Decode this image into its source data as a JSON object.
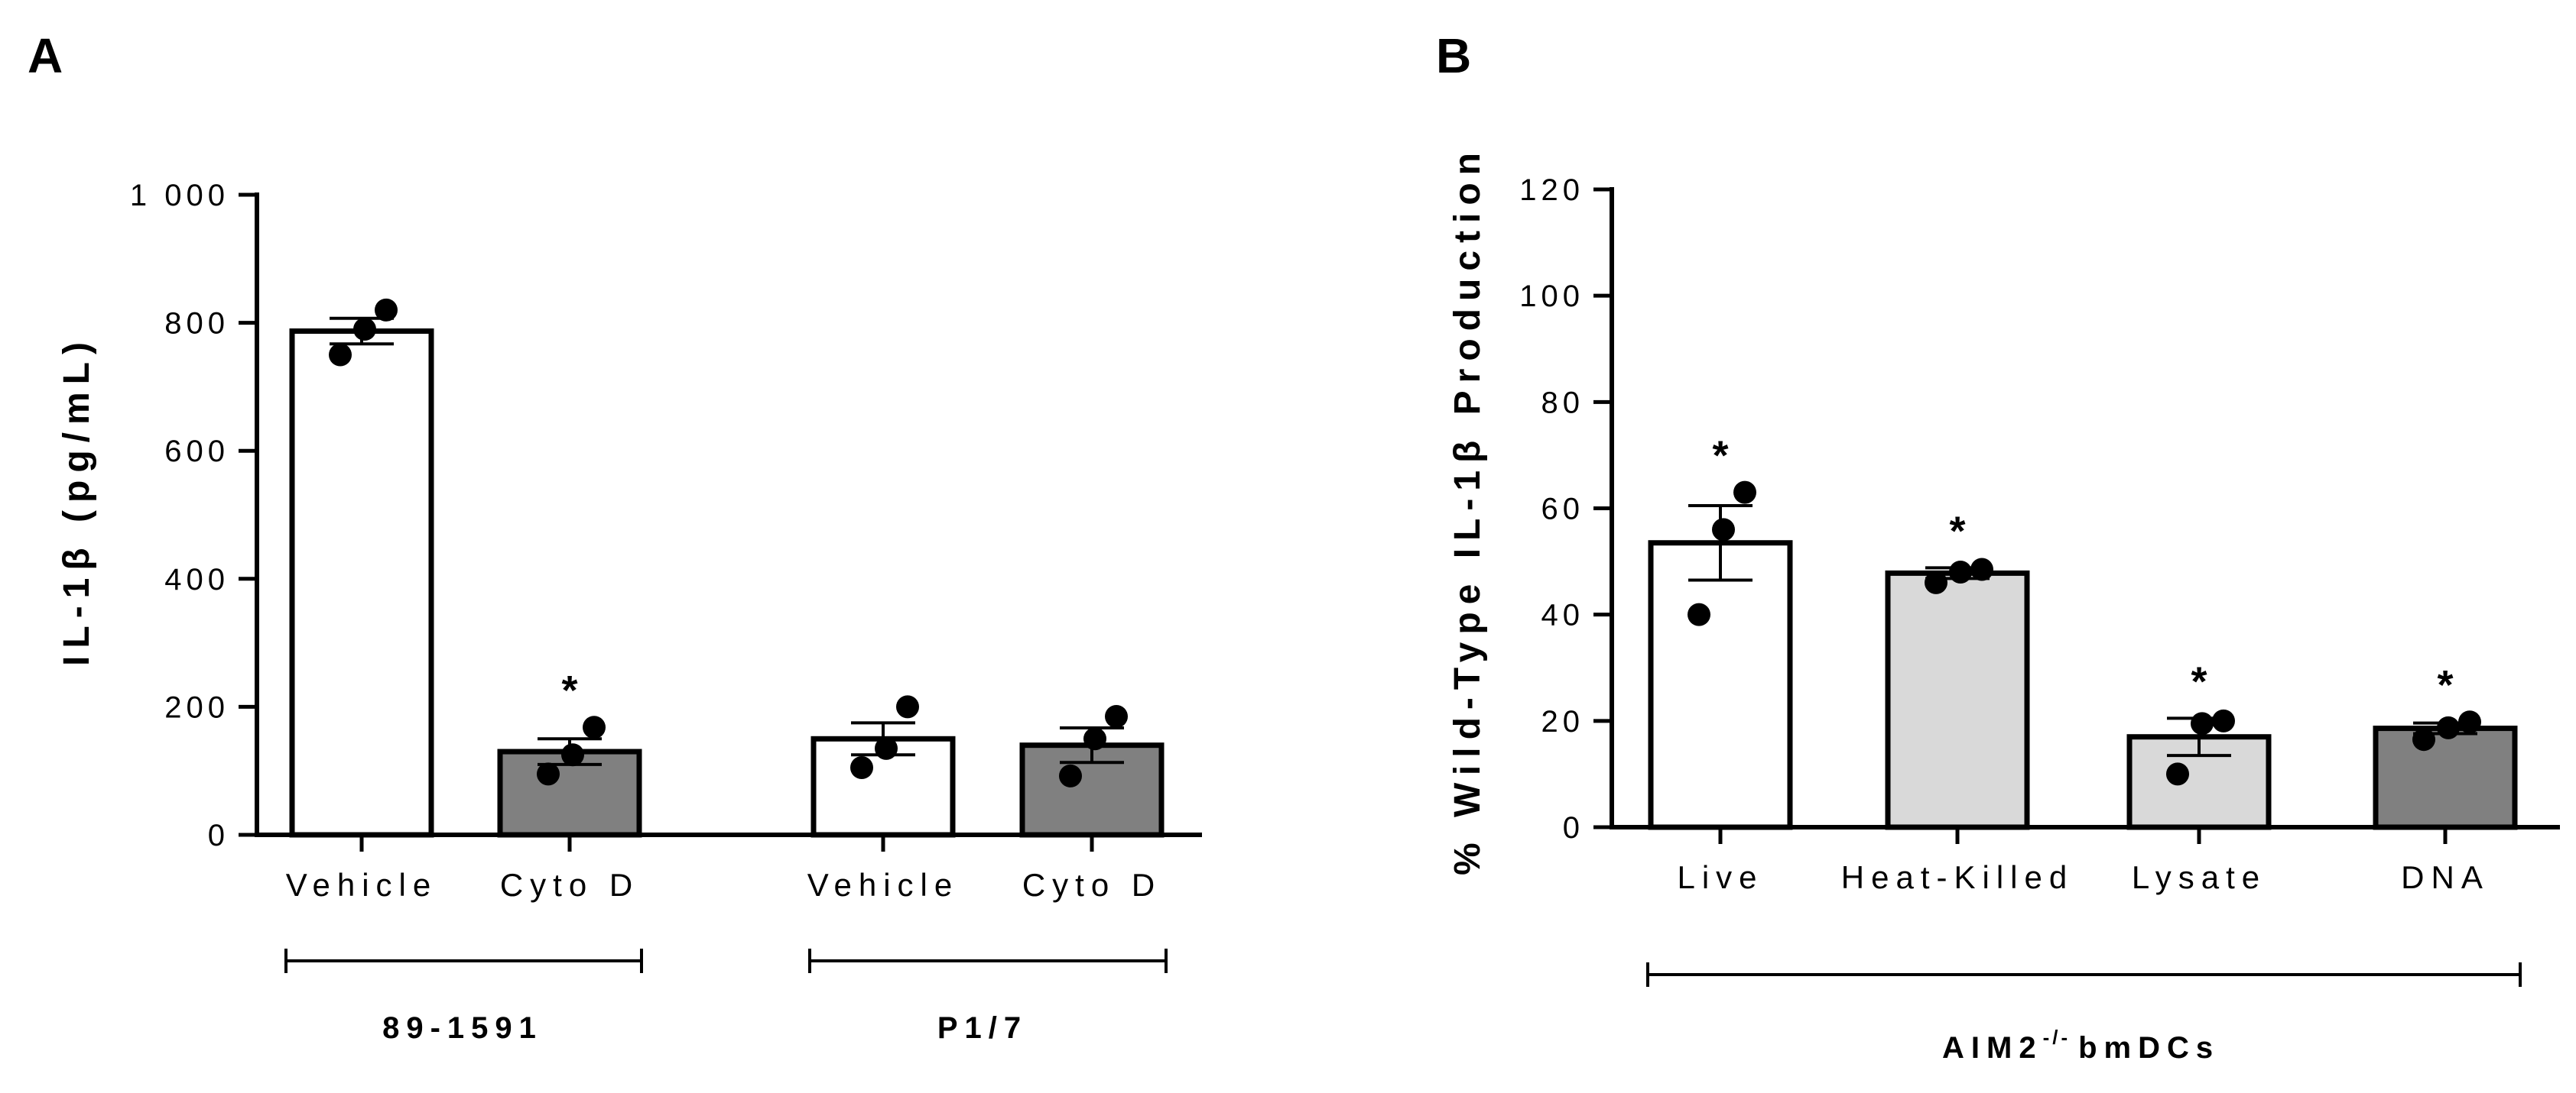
{
  "colors": {
    "white": "#ffffff",
    "light_gray": "#d9d9d9",
    "dark_gray": "#808080",
    "black": "#000000"
  },
  "chart_data": [
    {
      "panel": "A",
      "type": "bar",
      "ylabel": "IL-1β (pg/mL)",
      "ylim": [
        0,
        1000
      ],
      "yticks": [
        0,
        200,
        400,
        600,
        800,
        1000
      ],
      "ytick_labels": [
        "0",
        "200",
        "400",
        "600",
        "800",
        "1 000"
      ],
      "bars": [
        {
          "label": "Vehicle",
          "group": 0,
          "value": 787,
          "sem": 20,
          "fill": "white",
          "points": [
            750,
            790,
            820
          ],
          "star": ""
        },
        {
          "label": "Cyto D",
          "group": 0,
          "value": 130,
          "sem": 20,
          "fill": "dark_gray",
          "points": [
            95,
            125,
            168
          ],
          "star": "*"
        },
        {
          "label": "Vehicle",
          "group": 1,
          "value": 150,
          "sem": 25,
          "fill": "white",
          "points": [
            105,
            135,
            200
          ],
          "star": ""
        },
        {
          "label": "Cyto D",
          "group": 1,
          "value": 140,
          "sem": 27,
          "fill": "dark_gray",
          "points": [
            92,
            150,
            185
          ],
          "star": ""
        }
      ],
      "groups": [
        "89-1591",
        "P1/7"
      ]
    },
    {
      "panel": "B",
      "type": "bar",
      "ylabel": "% Wild-Type IL-1β Production",
      "ylim": [
        0,
        120
      ],
      "yticks": [
        0,
        20,
        40,
        60,
        80,
        100,
        120
      ],
      "ytick_labels": [
        "0",
        "20",
        "40",
        "60",
        "80",
        "100",
        "120"
      ],
      "bars": [
        {
          "label": "Live",
          "group": 0,
          "value": 53.5,
          "sem": 7,
          "fill": "white",
          "points": [
            40,
            56,
            63
          ],
          "star": "*"
        },
        {
          "label": "Heat-Killed",
          "group": 0,
          "value": 47.8,
          "sem": 1,
          "fill": "light_gray",
          "points": [
            46,
            48,
            48.5
          ],
          "star": "*"
        },
        {
          "label": "Lysate",
          "group": 0,
          "value": 17,
          "sem": 3.5,
          "fill": "light_gray",
          "points": [
            10,
            19.5,
            20
          ],
          "star": "*"
        },
        {
          "label": "DNA",
          "group": 0,
          "value": 18.6,
          "sem": 1,
          "fill": "dark_gray",
          "points": [
            16.5,
            18.7,
            19.8
          ],
          "star": "*"
        }
      ],
      "group_label": {
        "main": "AIM2",
        "sup": "-/-",
        "rest": "bmDCs"
      }
    }
  ]
}
